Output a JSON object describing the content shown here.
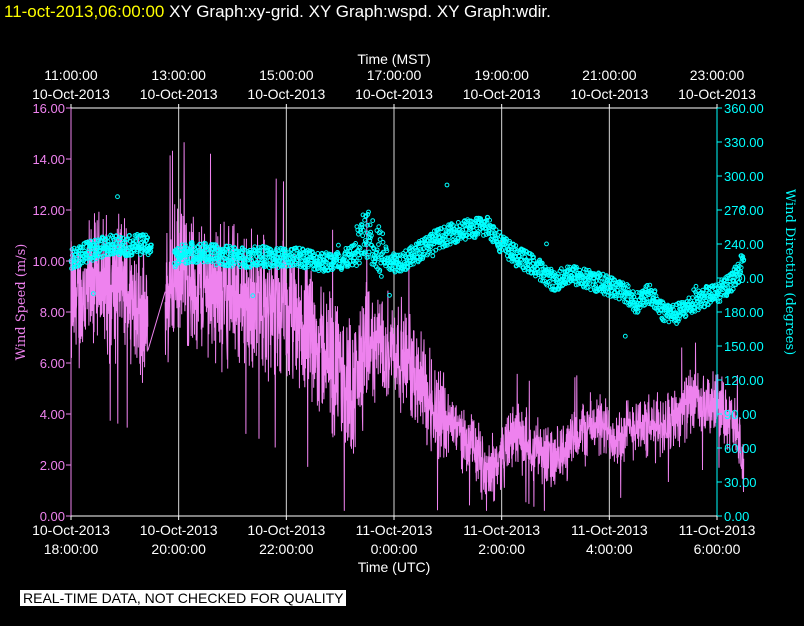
{
  "header": {
    "timestamp": "11-oct-2013,06:00:00",
    "graph_titles": [
      "XY Graph:xy-grid.",
      "XY Graph:wspd.",
      "XY Graph:wdir."
    ]
  },
  "footer": {
    "quality_notice": "REAL-TIME DATA, NOT CHECKED FOR QUALITY"
  },
  "colors": {
    "wind_speed": "#ee82ee",
    "wind_direction": "#00ffff",
    "axes": "#ffffff",
    "grid": "#ffffff",
    "header_timestamp": "#ffff00",
    "background": "#000000"
  },
  "chart_data": {
    "type": "line",
    "top_axis": {
      "label": "Time (MST)",
      "ticks": [
        {
          "hour": 0,
          "time": "11:00:00",
          "date": "10-Oct-2013"
        },
        {
          "hour": 2,
          "time": "13:00:00",
          "date": "10-Oct-2013"
        },
        {
          "hour": 4,
          "time": "15:00:00",
          "date": "10-Oct-2013"
        },
        {
          "hour": 6,
          "time": "17:00:00",
          "date": "10-Oct-2013"
        },
        {
          "hour": 8,
          "time": "19:00:00",
          "date": "10-Oct-2013"
        },
        {
          "hour": 10,
          "time": "21:00:00",
          "date": "10-Oct-2013"
        },
        {
          "hour": 12,
          "time": "23:00:00",
          "date": "10-Oct-2013"
        }
      ]
    },
    "bottom_axis": {
      "label": "Time (UTC)",
      "ticks": [
        {
          "hour": 0,
          "date": "10-Oct-2013",
          "time": "18:00:00"
        },
        {
          "hour": 2,
          "date": "10-Oct-2013",
          "time": "20:00:00"
        },
        {
          "hour": 4,
          "date": "10-Oct-2013",
          "time": "22:00:00"
        },
        {
          "hour": 6,
          "date": "11-Oct-2013",
          "time": "0:00:00"
        },
        {
          "hour": 8,
          "date": "11-Oct-2013",
          "time": "2:00:00"
        },
        {
          "hour": 10,
          "date": "11-Oct-2013",
          "time": "4:00:00"
        },
        {
          "hour": 12,
          "date": "11-Oct-2013",
          "time": "6:00:00"
        }
      ]
    },
    "x_range_hours": [
      0,
      12
    ],
    "y_left": {
      "label": "Wind Speed (m/s)",
      "range": [
        0,
        16
      ],
      "ticks": [
        "0.00",
        "2.00",
        "4.00",
        "6.00",
        "8.00",
        "10.00",
        "12.00",
        "14.00",
        "16.00"
      ]
    },
    "y_right": {
      "label": "Wind Direction (degrees)",
      "range": [
        0,
        360
      ],
      "ticks": [
        "0.00",
        "30.00",
        "60.00",
        "90.00",
        "120.00",
        "150.00",
        "180.00",
        "210.00",
        "240.00",
        "270.00",
        "300.00",
        "330.00",
        "360.00"
      ]
    },
    "grid": "vertical",
    "series": [
      {
        "name": "wspd",
        "axis": "left",
        "style": "line",
        "gap_hours": [
          1.43,
          1.75
        ],
        "points": [
          [
            0.0,
            8.2
          ],
          [
            0.25,
            8.6
          ],
          [
            0.5,
            9.2
          ],
          [
            0.75,
            9.0
          ],
          [
            1.0,
            8.8
          ],
          [
            1.25,
            8.5
          ],
          [
            1.4,
            7.2
          ],
          [
            1.75,
            8.5
          ],
          [
            2.0,
            9.5
          ],
          [
            2.25,
            9.2
          ],
          [
            2.5,
            9.0
          ],
          [
            2.75,
            8.8
          ],
          [
            3.0,
            8.7
          ],
          [
            3.25,
            8.5
          ],
          [
            3.5,
            8.3
          ],
          [
            3.75,
            8.0
          ],
          [
            4.0,
            7.8
          ],
          [
            4.25,
            7.5
          ],
          [
            4.5,
            7.0
          ],
          [
            4.75,
            6.3
          ],
          [
            5.0,
            5.5
          ],
          [
            5.25,
            5.0
          ],
          [
            5.5,
            6.5
          ],
          [
            5.75,
            6.8
          ],
          [
            6.0,
            6.6
          ],
          [
            6.25,
            6.0
          ],
          [
            6.5,
            5.2
          ],
          [
            6.75,
            4.3
          ],
          [
            7.0,
            3.8
          ],
          [
            7.25,
            3.2
          ],
          [
            7.5,
            2.6
          ],
          [
            7.75,
            1.6
          ],
          [
            8.0,
            2.4
          ],
          [
            8.25,
            3.2
          ],
          [
            8.5,
            2.9
          ],
          [
            8.75,
            2.6
          ],
          [
            9.0,
            2.0
          ],
          [
            9.25,
            2.8
          ],
          [
            9.5,
            3.3
          ],
          [
            9.75,
            3.6
          ],
          [
            10.0,
            3.3
          ],
          [
            10.25,
            3.1
          ],
          [
            10.5,
            3.7
          ],
          [
            10.75,
            3.4
          ],
          [
            11.0,
            3.6
          ],
          [
            11.25,
            4.0
          ],
          [
            11.5,
            4.5
          ],
          [
            11.75,
            4.2
          ],
          [
            12.0,
            4.4
          ],
          [
            12.25,
            3.8
          ],
          [
            12.4,
            3.0
          ],
          [
            12.5,
            1.8
          ]
        ]
      },
      {
        "name": "wdir",
        "axis": "right",
        "style": "markers",
        "gap_hours": [
          1.5,
          1.92
        ],
        "points": [
          [
            0.0,
            226
          ],
          [
            0.25,
            232
          ],
          [
            0.5,
            236
          ],
          [
            0.75,
            240
          ],
          [
            1.0,
            238
          ],
          [
            1.25,
            240
          ],
          [
            1.4,
            239
          ],
          [
            1.92,
            226
          ],
          [
            2.0,
            230
          ],
          [
            2.25,
            233
          ],
          [
            2.5,
            232
          ],
          [
            2.75,
            230
          ],
          [
            3.0,
            229
          ],
          [
            3.25,
            228
          ],
          [
            3.5,
            230
          ],
          [
            3.75,
            227
          ],
          [
            4.0,
            228
          ],
          [
            4.25,
            229
          ],
          [
            4.5,
            226
          ],
          [
            4.75,
            224
          ],
          [
            5.0,
            225
          ],
          [
            5.25,
            230
          ],
          [
            5.5,
            250
          ],
          [
            5.75,
            232
          ],
          [
            6.0,
            224
          ],
          [
            6.25,
            226
          ],
          [
            6.5,
            235
          ],
          [
            6.75,
            243
          ],
          [
            7.0,
            248
          ],
          [
            7.25,
            252
          ],
          [
            7.5,
            254
          ],
          [
            7.75,
            256
          ],
          [
            8.0,
            240
          ],
          [
            8.25,
            230
          ],
          [
            8.5,
            224
          ],
          [
            8.75,
            216
          ],
          [
            9.0,
            206
          ],
          [
            9.25,
            214
          ],
          [
            9.5,
            210
          ],
          [
            9.75,
            207
          ],
          [
            10.0,
            203
          ],
          [
            10.25,
            199
          ],
          [
            10.5,
            188
          ],
          [
            10.75,
            196
          ],
          [
            11.0,
            181
          ],
          [
            11.25,
            178
          ],
          [
            11.5,
            186
          ],
          [
            11.75,
            193
          ],
          [
            12.0,
            196
          ],
          [
            12.25,
            206
          ],
          [
            12.4,
            214
          ],
          [
            12.5,
            232
          ]
        ]
      }
    ]
  }
}
